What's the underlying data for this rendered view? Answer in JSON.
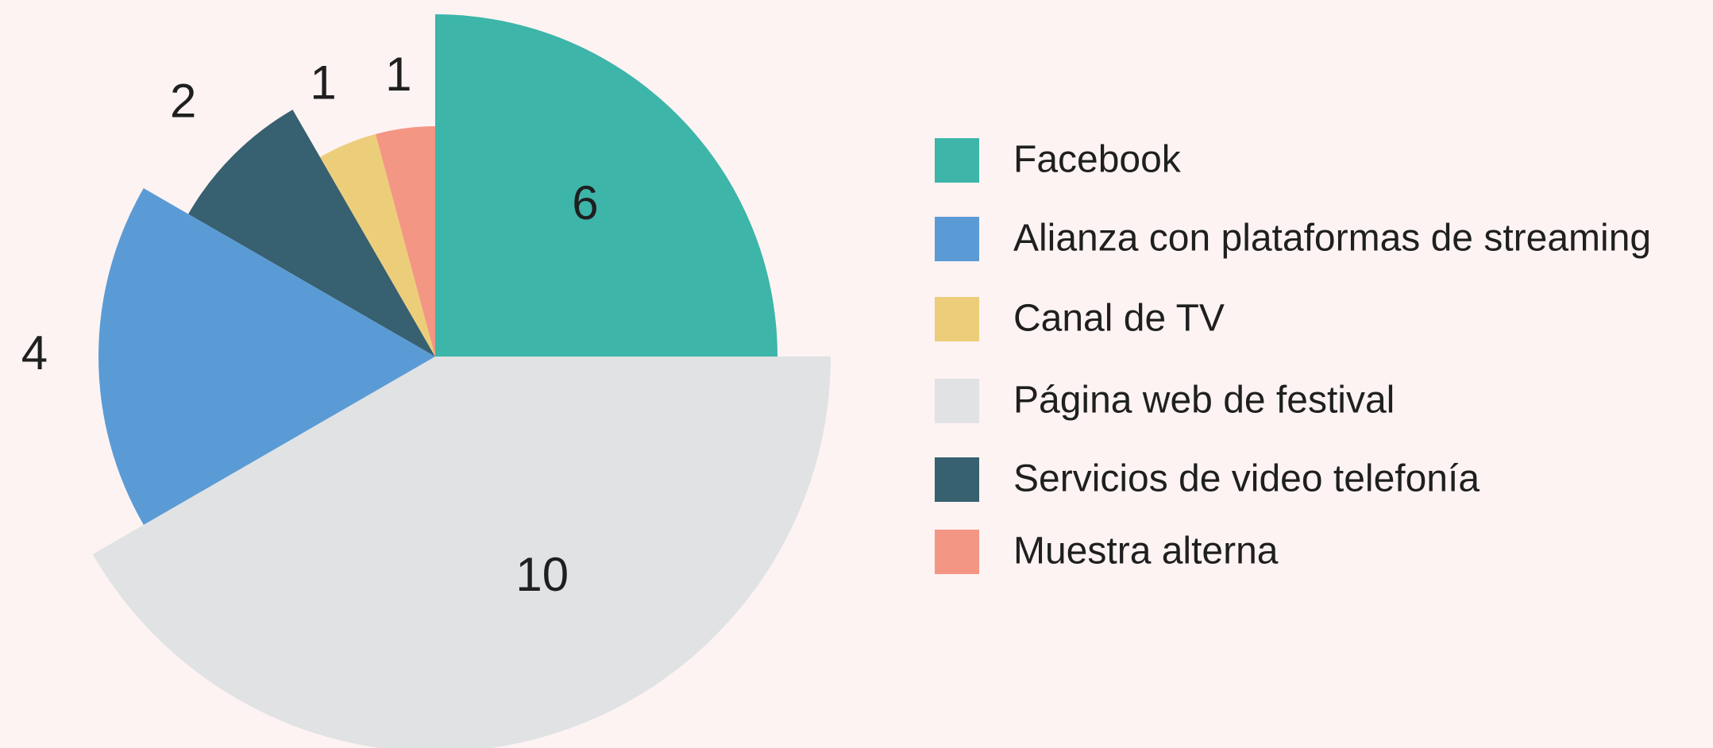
{
  "chart_data": {
    "type": "pie",
    "categories": [
      "Facebook",
      "Página web de festival",
      "Alianza con plataformas de streaming",
      "Servicios de video telefonía",
      "Canal de TV",
      "Muestra alterna"
    ],
    "values": [
      6,
      10,
      4,
      2,
      1,
      1
    ],
    "colors": [
      "#3db5a9",
      "#e0e2e4",
      "#5b9bd5",
      "#376070",
      "#ecce7a",
      "#f39683"
    ],
    "legend": "right"
  }
}
